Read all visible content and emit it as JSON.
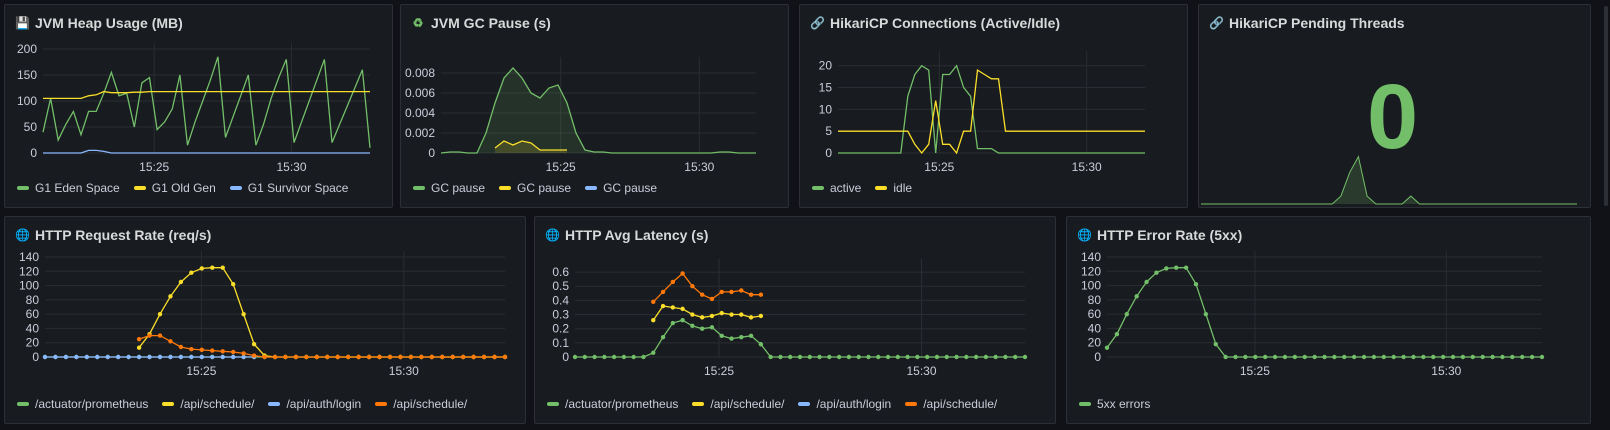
{
  "colors": {
    "green": "#73bf69",
    "yellow": "#fade2a",
    "blue": "#8ab8ff",
    "orange": "#ff780a",
    "grid": "#2a2d33"
  },
  "panels": [
    {
      "id": "heap",
      "title": "JVM Heap Usage (MB)",
      "icon": "floppy-disk-icon",
      "icon_glyph": "💾",
      "x_ticks": [
        "15:25",
        "15:30"
      ],
      "y_ticks": [
        "200",
        "150",
        "100",
        "50",
        "0"
      ],
      "legend": [
        {
          "label": "G1 Eden Space",
          "color": "#73bf69"
        },
        {
          "label": "G1 Old Gen",
          "color": "#fade2a"
        },
        {
          "label": "G1 Survivor Space",
          "color": "#8ab8ff"
        }
      ]
    },
    {
      "id": "gc",
      "title": "JVM GC Pause (s)",
      "icon": "recycle-icon",
      "icon_glyph": "♻",
      "x_ticks": [
        "15:25",
        "15:30"
      ],
      "y_ticks": [
        "0.008",
        "0.006",
        "0.004",
        "0.002",
        "0"
      ],
      "legend": [
        {
          "label": "GC pause",
          "color": "#73bf69"
        },
        {
          "label": "GC pause",
          "color": "#fade2a"
        },
        {
          "label": "GC pause",
          "color": "#8ab8ff"
        }
      ]
    },
    {
      "id": "hikari",
      "title": "HikariCP Connections (Active/Idle)",
      "icon": "link-icon",
      "icon_glyph": "🔗",
      "x_ticks": [
        "15:25",
        "15:30"
      ],
      "y_ticks": [
        "20",
        "15",
        "10",
        "5",
        "0"
      ],
      "legend": [
        {
          "label": "active",
          "color": "#73bf69"
        },
        {
          "label": "idle",
          "color": "#fade2a"
        }
      ]
    },
    {
      "id": "pending",
      "title": "HikariCP Pending Threads",
      "icon": "link-icon",
      "icon_glyph": "🔗",
      "value": "0"
    },
    {
      "id": "reqrate",
      "title": "HTTP Request Rate (req/s)",
      "icon": "globe-icon",
      "icon_glyph": "🌐",
      "x_ticks": [
        "15:25",
        "15:30"
      ],
      "y_ticks": [
        "140",
        "120",
        "100",
        "80",
        "60",
        "40",
        "20",
        "0"
      ],
      "legend": [
        {
          "label": "/actuator/prometheus",
          "color": "#73bf69"
        },
        {
          "label": "/api/schedule/",
          "color": "#fade2a"
        },
        {
          "label": "/api/auth/login",
          "color": "#8ab8ff"
        },
        {
          "label": "/api/schedule/",
          "color": "#ff780a"
        }
      ]
    },
    {
      "id": "latency",
      "title": "HTTP Avg Latency (s)",
      "icon": "globe-icon",
      "icon_glyph": "🌐",
      "x_ticks": [
        "15:25",
        "15:30"
      ],
      "y_ticks": [
        "0.6",
        "0.5",
        "0.4",
        "0.3",
        "0.2",
        "0.1",
        "0"
      ],
      "legend": [
        {
          "label": "/actuator/prometheus",
          "color": "#73bf69"
        },
        {
          "label": "/api/schedule/",
          "color": "#fade2a"
        },
        {
          "label": "/api/auth/login",
          "color": "#8ab8ff"
        },
        {
          "label": "/api/schedule/",
          "color": "#ff780a"
        }
      ]
    },
    {
      "id": "errors",
      "title": "HTTP Error Rate (5xx)",
      "icon": "globe-icon",
      "icon_glyph": "🌐",
      "x_ticks": [
        "15:25",
        "15:30"
      ],
      "y_ticks": [
        "140",
        "120",
        "100",
        "80",
        "60",
        "40",
        "20",
        "0"
      ],
      "legend": [
        {
          "label": "5xx errors",
          "color": "#73bf69"
        }
      ]
    }
  ],
  "chart_data": [
    {
      "type": "line",
      "title": "JVM Heap Usage (MB)",
      "ylim": [
        0,
        200
      ],
      "x_ticks": [
        "15:25",
        "15:30"
      ],
      "series": [
        {
          "name": "G1 Eden Space",
          "values": [
            40,
            105,
            25,
            55,
            80,
            35,
            80,
            80,
            115,
            155,
            110,
            115,
            50,
            135,
            145,
            45,
            60,
            85,
            150,
            15,
            60,
            100,
            140,
            185,
            30,
            70,
            110,
            150,
            15,
            55,
            105,
            145,
            180,
            20,
            60,
            100,
            140,
            180,
            20,
            55,
            90,
            125,
            160,
            10
          ]
        },
        {
          "name": "G1 Old Gen",
          "values": [
            105,
            105,
            105,
            105,
            105,
            105,
            110,
            112,
            118,
            116,
            116,
            116,
            117,
            117,
            118,
            118,
            118,
            118,
            118,
            118,
            118,
            118,
            118,
            118,
            118,
            118,
            118,
            118,
            118,
            118,
            118,
            118,
            118,
            118,
            118,
            118,
            118,
            118,
            118,
            118,
            118,
            118,
            118,
            118
          ]
        },
        {
          "name": "G1 Survivor Space",
          "values": [
            0,
            0,
            0,
            0,
            0,
            0,
            5,
            5,
            3,
            0,
            0,
            0,
            0,
            0,
            0,
            0,
            0,
            0,
            0,
            0,
            0,
            0,
            0,
            0,
            0,
            0,
            0,
            0,
            0,
            0,
            0,
            0,
            0,
            0,
            0,
            0,
            0,
            0,
            0,
            0,
            0,
            0,
            0,
            0
          ]
        }
      ]
    },
    {
      "type": "area",
      "title": "JVM GC Pause (s)",
      "ylim": [
        0,
        0.009
      ],
      "x_ticks": [
        "15:25",
        "15:30"
      ],
      "series": [
        {
          "name": "GC pause",
          "values": [
            0,
            0.0001,
            0.0001,
            0,
            0,
            0.002,
            0.005,
            0.0075,
            0.0085,
            0.0075,
            0.006,
            0.0055,
            0.0065,
            0.0068,
            0.005,
            0.002,
            0.0003,
            0.0001,
            0.0001,
            0,
            0,
            0,
            0,
            0,
            0,
            0,
            0,
            0,
            0,
            0,
            0,
            0.0001,
            0.0001,
            0,
            0,
            0
          ]
        },
        {
          "name": "GC pause",
          "values": [
            null,
            null,
            null,
            null,
            null,
            null,
            0.0005,
            0.0012,
            0.0008,
            0.0012,
            0.001,
            0.0003,
            0.0003,
            0.0003,
            0.0003,
            null,
            null,
            null,
            null,
            null,
            null,
            null,
            null,
            null,
            null,
            null,
            null,
            null,
            null,
            null,
            null,
            null,
            null,
            null,
            null,
            null
          ]
        },
        {
          "name": "GC pause",
          "values": []
        }
      ]
    },
    {
      "type": "line",
      "title": "HikariCP Connections (Active/Idle)",
      "ylim": [
        0,
        22
      ],
      "x_ticks": [
        "15:25",
        "15:30"
      ],
      "series": [
        {
          "name": "active",
          "values": [
            0,
            0,
            0,
            0,
            0,
            0,
            0,
            0,
            0,
            0,
            13,
            18,
            20,
            19,
            0,
            18,
            18,
            20,
            15,
            13,
            1,
            1,
            1,
            0,
            0,
            0,
            0,
            0,
            0,
            0,
            0,
            0,
            0,
            0,
            0,
            0,
            0,
            0,
            0,
            0,
            0,
            0,
            0,
            0,
            0
          ]
        },
        {
          "name": "idle",
          "values": [
            5,
            5,
            5,
            5,
            5,
            5,
            5,
            5,
            5,
            5,
            5,
            2,
            0,
            2,
            12,
            2,
            2,
            0,
            5,
            5,
            19,
            18,
            17,
            17,
            5,
            5,
            5,
            5,
            5,
            5,
            5,
            5,
            5,
            5,
            5,
            5,
            5,
            5,
            5,
            5,
            5,
            5,
            5,
            5,
            5
          ]
        }
      ]
    },
    {
      "type": "area",
      "title": "HikariCP Pending Threads",
      "series": [
        {
          "name": "pending",
          "values": [
            0,
            0,
            0,
            0,
            0,
            0,
            0,
            0,
            0,
            0,
            0,
            0,
            0,
            0,
            0,
            0,
            0.1,
            0.4,
            0.6,
            0.1,
            0,
            0,
            0,
            0,
            0.1,
            0,
            0,
            0,
            0,
            0,
            0,
            0,
            0,
            0,
            0,
            0,
            0,
            0,
            0,
            0,
            0,
            0,
            0,
            0
          ]
        }
      ]
    },
    {
      "type": "line",
      "title": "HTTP Request Rate (req/s)",
      "ylim": [
        0,
        140
      ],
      "x_ticks": [
        "15:25",
        "15:30"
      ],
      "series": [
        {
          "name": "/actuator/prometheus",
          "values": [
            0,
            0,
            0,
            0,
            0,
            0,
            0,
            0,
            0,
            0,
            0,
            0,
            0,
            0,
            0,
            0,
            0,
            0,
            0,
            0,
            0,
            0,
            0,
            0,
            0,
            0,
            0,
            0,
            0,
            0,
            0,
            0,
            0,
            0,
            0,
            0,
            0,
            0,
            0,
            0,
            0,
            0,
            0,
            0,
            0
          ]
        },
        {
          "name": "/api/schedule/",
          "values": [
            null,
            null,
            null,
            null,
            null,
            null,
            null,
            null,
            null,
            13,
            32,
            60,
            85,
            105,
            118,
            124,
            125,
            125,
            102,
            60,
            18,
            2,
            0,
            0,
            0,
            0,
            0,
            0,
            0,
            0,
            0,
            0,
            0,
            0,
            0,
            0,
            0,
            0,
            0,
            0,
            0,
            0,
            0,
            0,
            0
          ]
        },
        {
          "name": "/api/auth/login",
          "values": [
            0,
            0,
            0,
            0,
            0,
            0,
            0,
            0,
            0,
            0,
            0,
            0,
            0,
            0,
            0,
            0,
            0,
            0,
            0,
            0,
            0,
            null,
            null,
            null,
            null,
            null,
            null,
            null,
            null,
            null,
            null,
            null,
            null,
            null,
            null,
            null,
            null,
            null,
            null,
            null,
            null,
            null,
            null,
            null,
            null
          ]
        },
        {
          "name": "/api/schedule/",
          "values": [
            null,
            null,
            null,
            null,
            null,
            null,
            null,
            null,
            null,
            25,
            30,
            30,
            22,
            14,
            11,
            10,
            9,
            8,
            7,
            5,
            2,
            0,
            0,
            0,
            0,
            0,
            0,
            0,
            0,
            0,
            0,
            0,
            0,
            0,
            0,
            0,
            0,
            0,
            0,
            0,
            0,
            0,
            0,
            0,
            0
          ]
        }
      ]
    },
    {
      "type": "line",
      "title": "HTTP Avg Latency (s)",
      "ylim": [
        0,
        0.65
      ],
      "x_ticks": [
        "15:25",
        "15:30"
      ],
      "series": [
        {
          "name": "/actuator/prometheus",
          "values": [
            0,
            0,
            0,
            0,
            0,
            0,
            0,
            0,
            0.03,
            0.14,
            0.24,
            0.26,
            0.22,
            0.2,
            0.21,
            0.15,
            0.13,
            0.14,
            0.15,
            0.09,
            0,
            0,
            0,
            0,
            0,
            0,
            0,
            0,
            0,
            0,
            0,
            0,
            0,
            0,
            0,
            0,
            0,
            0,
            0,
            0,
            0,
            0,
            0,
            0,
            0,
            0,
            0
          ]
        },
        {
          "name": "/api/schedule/",
          "values": [
            null,
            null,
            null,
            null,
            null,
            null,
            null,
            null,
            0.26,
            0.36,
            0.35,
            0.34,
            0.3,
            0.28,
            0.29,
            0.31,
            0.3,
            0.3,
            0.28,
            0.29,
            null,
            null,
            null,
            null,
            null,
            null,
            null,
            null,
            null,
            null,
            null,
            null,
            null,
            null,
            null,
            null,
            null,
            null,
            null,
            null,
            null,
            null,
            null,
            null,
            null,
            null,
            null
          ]
        },
        {
          "name": "/api/auth/login",
          "values": []
        },
        {
          "name": "/api/schedule/",
          "values": [
            null,
            null,
            null,
            null,
            null,
            null,
            null,
            null,
            0.39,
            0.46,
            0.53,
            0.59,
            0.5,
            0.44,
            0.41,
            0.46,
            0.46,
            0.47,
            0.44,
            0.44,
            null,
            null,
            null,
            null,
            null,
            null,
            null,
            null,
            null,
            null,
            null,
            null,
            null,
            null,
            null,
            null,
            null,
            null,
            null,
            null,
            null,
            null,
            null,
            null,
            null,
            null,
            null
          ]
        }
      ]
    },
    {
      "type": "line",
      "title": "HTTP Error Rate (5xx)",
      "ylim": [
        0,
        140
      ],
      "x_ticks": [
        "15:25",
        "15:30"
      ],
      "series": [
        {
          "name": "5xx errors",
          "values": [
            13,
            32,
            60,
            85,
            105,
            118,
            124,
            125,
            125,
            102,
            60,
            18,
            0,
            0,
            0,
            0,
            0,
            0,
            0,
            0,
            0,
            0,
            0,
            0,
            0,
            0,
            0,
            0,
            0,
            0,
            0,
            0,
            0,
            0,
            0,
            0,
            0,
            0,
            0,
            0,
            0,
            0,
            0,
            0,
            0
          ]
        }
      ]
    }
  ]
}
